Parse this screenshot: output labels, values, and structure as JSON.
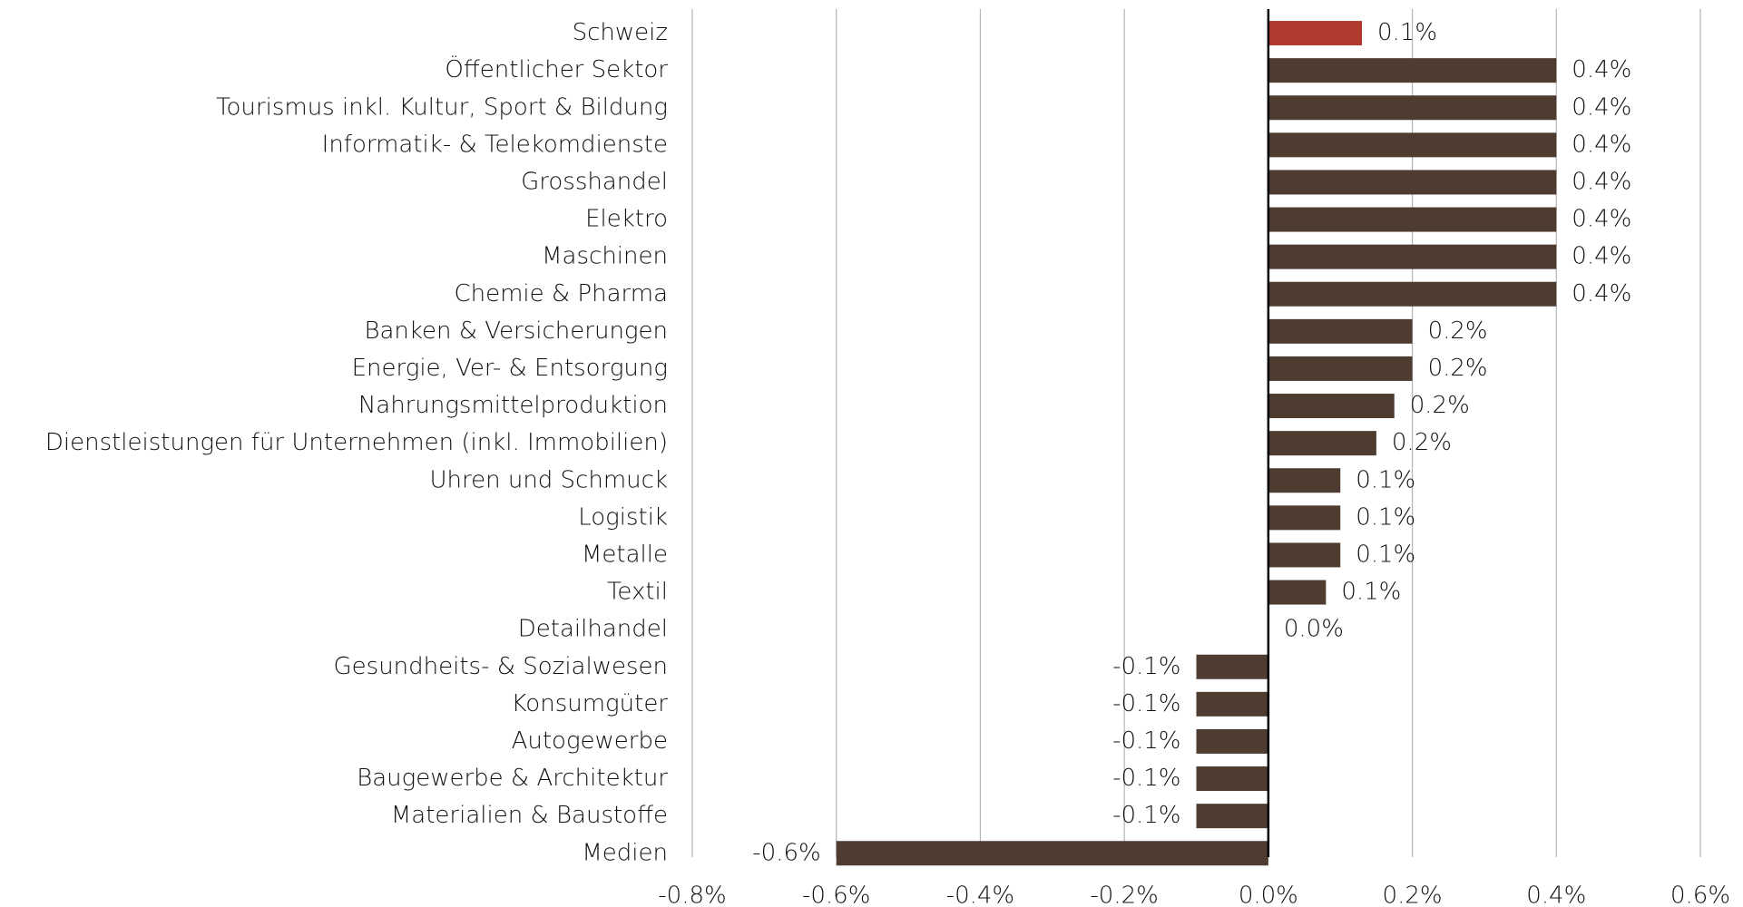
{
  "chart_data": {
    "type": "barh",
    "categories": [
      "Schweiz",
      "Öffentlicher Sektor",
      "Tourismus inkl. Kultur, Sport & Bildung",
      "Informatik- & Telekomdienste",
      "Grosshandel",
      "Elektro",
      "Maschinen",
      "Chemie & Pharma",
      "Banken & Versicherungen",
      "Energie, Ver- & Entsorgung",
      "Nahrungsmittelproduktion",
      "Dienstleistungen für Unternehmen (inkl. Immobilien)",
      "Uhren und Schmuck",
      "Logistik",
      "Metalle",
      "Textil",
      "Detailhandel",
      "Gesundheits- & Sozialwesen",
      "Konsumgüter",
      "Autogewerbe",
      "Baugewerbe & Architektur",
      "Materialien & Baustoffe",
      "Medien"
    ],
    "values": [
      0.13,
      0.4,
      0.4,
      0.4,
      0.4,
      0.4,
      0.4,
      0.4,
      0.2,
      0.2,
      0.175,
      0.15,
      0.1,
      0.1,
      0.1,
      0.08,
      0,
      -0.1,
      -0.1,
      -0.1,
      -0.1,
      -0.1,
      -0.6
    ],
    "value_labels": [
      "0.1%",
      "0.4%",
      "0.4%",
      "0.4%",
      "0.4%",
      "0.4%",
      "0.4%",
      "0.4%",
      "0.2%",
      "0.2%",
      "0.2%",
      "0.2%",
      "0.1%",
      "0.1%",
      "0.1%",
      "0.1%",
      "0.0%",
      "-0.1%",
      "-0.1%",
      "-0.1%",
      "-0.1%",
      "-0.1%",
      "-0.6%"
    ],
    "colors": [
      "#b03a2e",
      "#4e3c31",
      "#4e3c31",
      "#4e3c31",
      "#4e3c31",
      "#4e3c31",
      "#4e3c31",
      "#4e3c31",
      "#4e3c31",
      "#4e3c31",
      "#4e3c31",
      "#4e3c31",
      "#4e3c31",
      "#4e3c31",
      "#4e3c31",
      "#4e3c31",
      "#4e3c31",
      "#4e3c31",
      "#4e3c31",
      "#4e3c31",
      "#4e3c31",
      "#4e3c31",
      "#4e3c31"
    ],
    "xlim": [
      -0.8,
      0.6
    ],
    "xticks": [
      {
        "value": -0.8,
        "label": "-0.8%"
      },
      {
        "value": -0.6,
        "label": "-0.6%"
      },
      {
        "value": -0.4,
        "label": "-0.4%"
      },
      {
        "value": -0.2,
        "label": "-0.2%"
      },
      {
        "value": 0,
        "label": "0.0%"
      },
      {
        "value": 0.2,
        "label": "0.2%"
      },
      {
        "value": 0.4,
        "label": "0.4%"
      },
      {
        "value": 0.6,
        "label": "0.6%"
      }
    ],
    "grid": true
  }
}
